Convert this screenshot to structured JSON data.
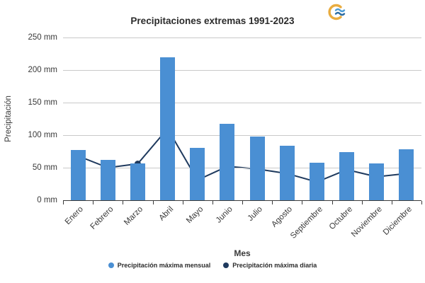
{
  "header": {
    "logo_icon": "brand-logo",
    "logo_colors": {
      "arc": "#E9AC3F",
      "wave_top": "#4E9CD5",
      "wave_bottom": "#2B6CA3"
    }
  },
  "chart_data": {
    "type": "bar",
    "title": "Precipitaciones extremas 1991-2023",
    "xlabel": "Mes",
    "ylabel": "Precipitación",
    "categories": [
      "Enero",
      "Febrero",
      "Marzo",
      "Abril",
      "Mayo",
      "Junio",
      "Julio",
      "Agosto",
      "Septiembre",
      "Octubre",
      "Noviembre",
      "Diciembre"
    ],
    "series": [
      {
        "name": "Precipitación máxima mensual",
        "type": "bar",
        "color": "#4A8FD3",
        "values": [
          77,
          62,
          57,
          220,
          80,
          117,
          98,
          84,
          58,
          74,
          56,
          78
        ]
      },
      {
        "name": "Precipitación máxima diaria",
        "type": "line",
        "color": "#1F3A5E",
        "values": [
          68,
          50,
          56,
          110,
          31,
          52,
          48,
          41,
          28,
          47,
          36,
          41
        ]
      }
    ],
    "ylim": [
      0,
      250
    ],
    "yticks": [
      {
        "label": "0 mm",
        "value": 0
      },
      {
        "label": "50 mm",
        "value": 50
      },
      {
        "label": "100 mm",
        "value": 100
      },
      {
        "label": "150 mm",
        "value": 150
      },
      {
        "label": "200 mm",
        "value": 200
      },
      {
        "label": "250 mm",
        "value": 250
      }
    ],
    "grid": true,
    "grid_color": "#C9C9C9",
    "axis_color": "#3A3A3A",
    "legend_position": "bottom"
  }
}
